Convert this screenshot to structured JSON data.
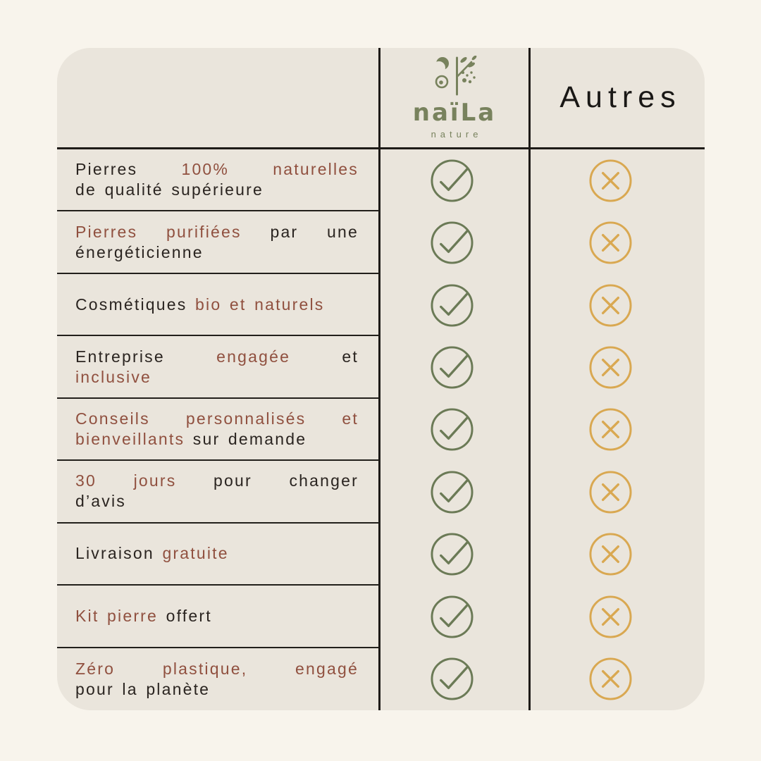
{
  "header": {
    "brand": {
      "name": "naïLa",
      "subtitle": "nature",
      "logo_icon": "moon-branch-berries-icon"
    },
    "other_label": "Autres"
  },
  "icons": {
    "positive": "check-circle-icon",
    "negative": "cross-circle-icon"
  },
  "colors": {
    "page_background": "#F8F4EC",
    "card_background": "#EAE5DC",
    "line": "#1E1B18",
    "text_dark": "#2A2420",
    "text_accent": "#90503F",
    "brand_green": "#78825D",
    "check_green": "#6B7A56",
    "cross_gold": "#D9A851"
  },
  "rows": [
    {
      "lines": [
        [
          {
            "t": "Pierres ",
            "c": "dark"
          },
          {
            "t": "100% naturelles",
            "c": "accent"
          }
        ],
        [
          {
            "t": "de qualité supérieure",
            "c": "dark"
          }
        ]
      ],
      "naila": "check",
      "autres": "cross"
    },
    {
      "lines": [
        [
          {
            "t": "Pierres purifiées",
            "c": "accent"
          },
          {
            "t": " par une",
            "c": "dark"
          }
        ],
        [
          {
            "t": "énergéticienne",
            "c": "dark"
          }
        ]
      ],
      "naila": "check",
      "autres": "cross"
    },
    {
      "lines": [
        [
          {
            "t": "Cosmétiques ",
            "c": "dark"
          },
          {
            "t": "bio et naturels",
            "c": "accent"
          }
        ]
      ],
      "naila": "check",
      "autres": "cross"
    },
    {
      "lines": [
        [
          {
            "t": "Entreprise ",
            "c": "dark"
          },
          {
            "t": "engagée",
            "c": "accent"
          },
          {
            "t": " et",
            "c": "dark"
          }
        ],
        [
          {
            "t": "inclusive",
            "c": "accent"
          }
        ]
      ],
      "naila": "check",
      "autres": "cross"
    },
    {
      "lines": [
        [
          {
            "t": "Conseils personnalisés et",
            "c": "accent"
          }
        ],
        [
          {
            "t": "bienveillants",
            "c": "accent"
          },
          {
            "t": " sur demande",
            "c": "dark"
          }
        ]
      ],
      "naila": "check",
      "autres": "cross"
    },
    {
      "lines": [
        [
          {
            "t": "30 jours",
            "c": "accent"
          },
          {
            "t": " pour changer",
            "c": "dark"
          }
        ],
        [
          {
            "t": "d’avis",
            "c": "dark"
          }
        ]
      ],
      "naila": "check",
      "autres": "cross"
    },
    {
      "lines": [
        [
          {
            "t": "Livraison ",
            "c": "dark"
          },
          {
            "t": "gratuite",
            "c": "accent"
          }
        ]
      ],
      "naila": "check",
      "autres": "cross"
    },
    {
      "lines": [
        [
          {
            "t": "Kit pierre",
            "c": "accent"
          },
          {
            "t": " offert",
            "c": "dark"
          }
        ]
      ],
      "naila": "check",
      "autres": "cross"
    },
    {
      "lines": [
        [
          {
            "t": "Zéro plastique, engagé",
            "c": "accent"
          }
        ],
        [
          {
            "t": "pour la planète",
            "c": "dark"
          }
        ]
      ],
      "naila": "check",
      "autres": "cross"
    }
  ]
}
